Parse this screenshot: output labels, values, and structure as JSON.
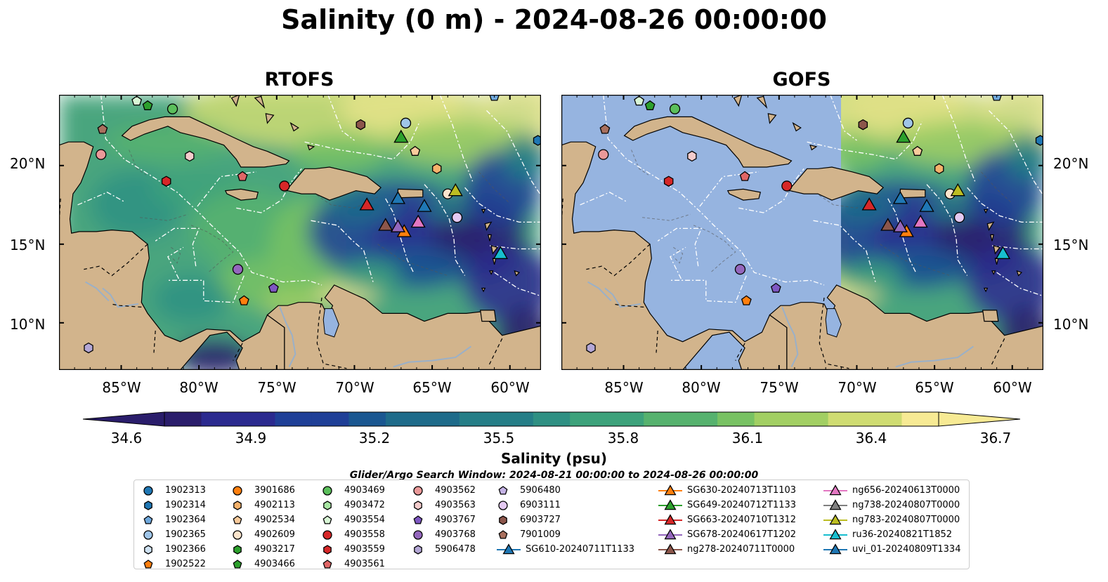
{
  "title": "Salinity (0 m) - 2024-08-26 00:00:00",
  "panels": [
    {
      "title": "RTOFS",
      "coverage": "full"
    },
    {
      "title": "GOFS",
      "coverage": "east-of-71W"
    }
  ],
  "map": {
    "lon_range": [
      -89,
      -58
    ],
    "lat_range": [
      7,
      24.5
    ],
    "lon_ticks": [
      "85°W",
      "80°W",
      "75°W",
      "70°W",
      "65°W",
      "60°W"
    ],
    "lat_ticks": [
      "20°N",
      "15°N",
      "10°N"
    ],
    "land_color": "#d2b48c",
    "nodata_color": "#96b4e0",
    "boundary_color": "#ffffff"
  },
  "colorbar": {
    "label": "Salinity (psu)",
    "ticks": [
      "34.6",
      "34.9",
      "35.2",
      "35.5",
      "35.8",
      "36.1",
      "36.4",
      "36.7"
    ],
    "range": [
      34.6,
      36.7
    ],
    "colormap": "haline",
    "extend": "both"
  },
  "search_window": "Glider/Argo Search Window: 2024-08-21 00:00:00 to 2024-08-26 00:00:00",
  "chart_data": {
    "type": "heatmap",
    "variable": "Salinity",
    "depth": "0 m",
    "time": "2024-08-26 00:00:00",
    "units": "psu",
    "zlim": [
      34.6,
      36.7
    ],
    "observations": [
      {
        "id": "1902313",
        "color": "#1f77b4",
        "marker": "circle",
        "lon": null,
        "lat": null
      },
      {
        "id": "1902314",
        "color": "#1f77b4",
        "marker": "hexagon",
        "lon": -58.2,
        "lat": 21.6
      },
      {
        "id": "1902364",
        "color": "#6fa8dc",
        "marker": "pentagon",
        "lon": -61.0,
        "lat": 24.4
      },
      {
        "id": "1902365",
        "color": "#9fc5e8",
        "marker": "circle",
        "lon": -66.7,
        "lat": 22.7
      },
      {
        "id": "1902366",
        "color": "#cfe2f3",
        "marker": "hexagon",
        "lon": null,
        "lat": null
      },
      {
        "id": "1902522",
        "color": "#ff7f0e",
        "marker": "pentagon",
        "lon": -77.1,
        "lat": 11.4
      },
      {
        "id": "3901686",
        "color": "#ff7f0e",
        "marker": "circle",
        "lon": null,
        "lat": null
      },
      {
        "id": "4902113",
        "color": "#f6b26b",
        "marker": "hexagon",
        "lon": -64.7,
        "lat": 19.8
      },
      {
        "id": "4902534",
        "color": "#f9cb9c",
        "marker": "pentagon",
        "lon": -66.1,
        "lat": 20.9
      },
      {
        "id": "4902609",
        "color": "#fce5cd",
        "marker": "circle",
        "lon": -64.0,
        "lat": 18.2
      },
      {
        "id": "4903217",
        "color": "#2ca02c",
        "marker": "hexagon",
        "lon": null,
        "lat": null
      },
      {
        "id": "4903466",
        "color": "#2ca02c",
        "marker": "pentagon",
        "lon": -83.3,
        "lat": 23.8
      },
      {
        "id": "4903469",
        "color": "#5bbf5b",
        "marker": "circle",
        "lon": -81.7,
        "lat": 23.6
      },
      {
        "id": "4903472",
        "color": "#a8e6a3",
        "marker": "hexagon",
        "lon": null,
        "lat": null
      },
      {
        "id": "4903554",
        "color": "#d9f7d6",
        "marker": "pentagon",
        "lon": -84.0,
        "lat": 24.1
      },
      {
        "id": "4903558",
        "color": "#d62728",
        "marker": "circle",
        "lon": -74.5,
        "lat": 18.7
      },
      {
        "id": "4903559",
        "color": "#d62728",
        "marker": "hexagon",
        "lon": -82.1,
        "lat": 19.0
      },
      {
        "id": "4903561",
        "color": "#e06666",
        "marker": "pentagon",
        "lon": -77.2,
        "lat": 19.3
      },
      {
        "id": "4903562",
        "color": "#ea9999",
        "marker": "circle",
        "lon": -86.3,
        "lat": 20.7
      },
      {
        "id": "4903563",
        "color": "#f4cccc",
        "marker": "hexagon",
        "lon": -80.6,
        "lat": 20.6
      },
      {
        "id": "4903767",
        "color": "#7e57c2",
        "marker": "pentagon",
        "lon": -75.2,
        "lat": 12.2
      },
      {
        "id": "4903768",
        "color": "#9467bd",
        "marker": "circle",
        "lon": -77.5,
        "lat": 13.4
      },
      {
        "id": "5906478",
        "color": "#b4a7d6",
        "marker": "hexagon",
        "lon": -87.1,
        "lat": 8.4
      },
      {
        "id": "5906480",
        "color": "#c5b3e6",
        "marker": "pentagon",
        "lon": null,
        "lat": null
      },
      {
        "id": "6903111",
        "color": "#e4c9f2",
        "marker": "circle",
        "lon": -63.4,
        "lat": 16.7
      },
      {
        "id": "6903727",
        "color": "#8c564b",
        "marker": "hexagon",
        "lon": -69.6,
        "lat": 22.6
      },
      {
        "id": "7901009",
        "color": "#a9705e",
        "marker": "pentagon",
        "lon": -86.2,
        "lat": 22.3
      },
      {
        "id": "SG610-20240711T1133",
        "color": "#1f77b4",
        "marker": "triangle",
        "lon": -67.2,
        "lat": 17.9
      },
      {
        "id": "SG630-20240713T1103",
        "color": "#ff7f0e",
        "marker": "triangle",
        "lon": -66.8,
        "lat": 15.8
      },
      {
        "id": "SG649-20240712T1133",
        "color": "#2ca02c",
        "marker": "triangle",
        "lon": -67.0,
        "lat": 21.8
      },
      {
        "id": "SG663-20240710T1312",
        "color": "#d62728",
        "marker": "triangle",
        "lon": -69.2,
        "lat": 17.5
      },
      {
        "id": "SG678-20240617T1202",
        "color": "#9467bd",
        "marker": "triangle",
        "lon": -67.2,
        "lat": 16.1
      },
      {
        "id": "ng278-20240711T0000",
        "color": "#8c564b",
        "marker": "triangle",
        "lon": -68.0,
        "lat": 16.2
      },
      {
        "id": "ng656-20240613T0000",
        "color": "#e377c2",
        "marker": "triangle",
        "lon": -65.9,
        "lat": 16.4
      },
      {
        "id": "ng738-20240807T0000",
        "color": "#7f7f7f",
        "marker": "triangle",
        "lon": null,
        "lat": null
      },
      {
        "id": "ng783-20240807T0000",
        "color": "#bcbd22",
        "marker": "triangle",
        "lon": -63.5,
        "lat": 18.4
      },
      {
        "id": "ru36-20240821T1852",
        "color": "#17becf",
        "marker": "triangle",
        "lon": -60.6,
        "lat": 14.4
      },
      {
        "id": "uvi_01-20240809T1334",
        "color": "#1f77b4",
        "marker": "triangle",
        "lon": -65.5,
        "lat": 17.4
      }
    ]
  }
}
